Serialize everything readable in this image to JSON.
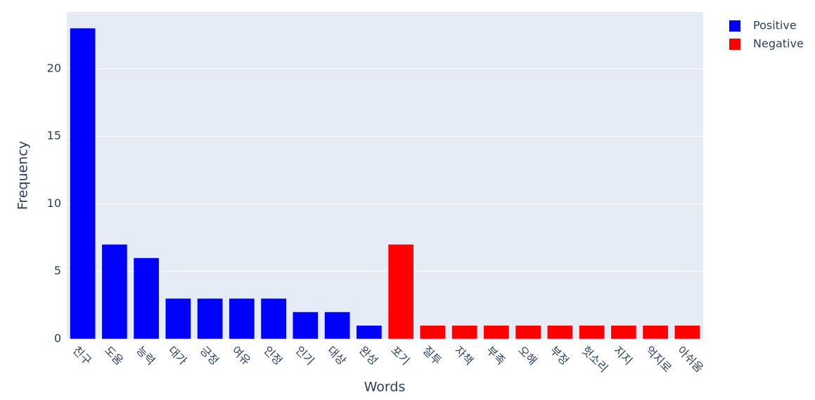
{
  "chart_data": {
    "type": "bar",
    "x_label": "Words",
    "y_label": "Frequency",
    "categories": [
      "친구",
      "도움",
      "능력",
      "대가",
      "긍정",
      "여유",
      "인정",
      "인기",
      "대상",
      "완성",
      "포기",
      "질투",
      "자책",
      "부족",
      "오해",
      "부정",
      "헛소리",
      "지지",
      "억지로",
      "아쉬움"
    ],
    "series": [
      {
        "name": "Positive",
        "color": "#0000ff",
        "values": [
          23,
          7,
          6,
          3,
          3,
          3,
          3,
          2,
          2,
          1,
          null,
          null,
          null,
          null,
          null,
          null,
          null,
          null,
          null,
          null
        ]
      },
      {
        "name": "Negative",
        "color": "#ff0000",
        "values": [
          null,
          null,
          null,
          null,
          null,
          null,
          null,
          null,
          null,
          null,
          7,
          1,
          1,
          1,
          1,
          1,
          1,
          1,
          1,
          1
        ]
      }
    ],
    "ylim": [
      0,
      24.2
    ],
    "yticks": [
      0,
      5,
      10,
      15,
      20
    ],
    "grid": true,
    "legend": "right"
  }
}
